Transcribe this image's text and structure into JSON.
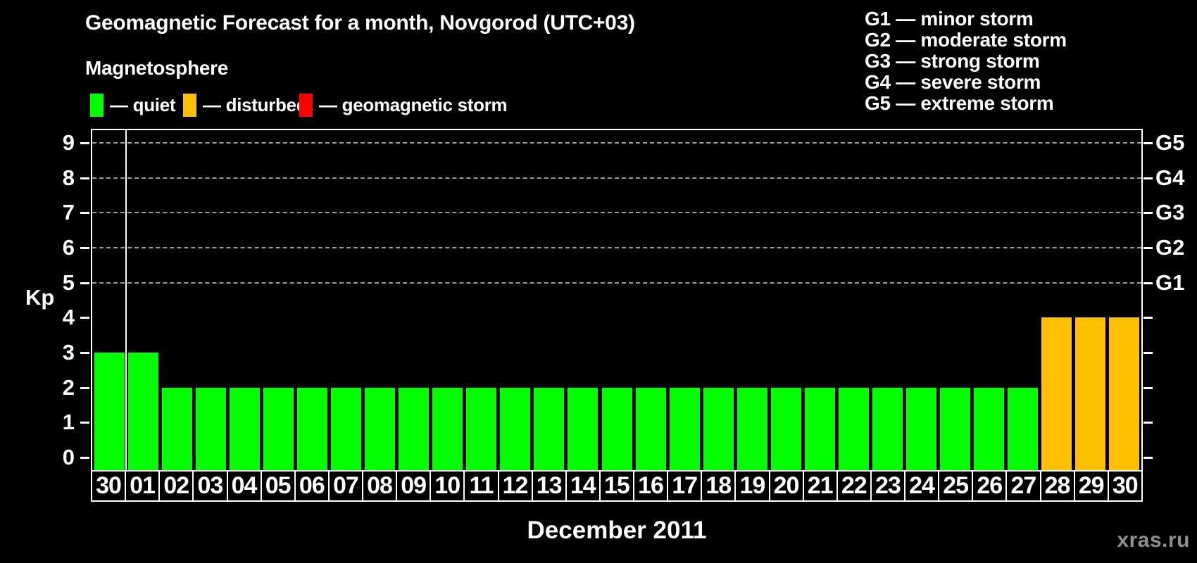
{
  "title": "Geomagnetic Forecast for a month, Novgorod (UTC+03)",
  "watermark": "xras.ru",
  "legend": {
    "heading": "Magnetosphere",
    "items": [
      {
        "label": "— quiet",
        "status": "quiet",
        "color": "#00FF00"
      },
      {
        "label": "— disturbed",
        "status": "disturbed",
        "color": "#FFC000"
      },
      {
        "label": "— geomagnetic storm",
        "status": "storm",
        "color": "#FF0000"
      }
    ]
  },
  "g_scale_legend": [
    "G1 — minor storm",
    "G2 — moderate storm",
    "G3 — strong storm",
    "G4 — severe storm",
    "G5 — extreme storm"
  ],
  "chart_data": {
    "type": "bar",
    "title": "Geomagnetic Forecast for a month, Novgorod (UTC+03)",
    "xlabel": "December 2011",
    "ylabel": "Kp",
    "ylim": [
      0,
      9
    ],
    "yticks": [
      0,
      1,
      2,
      3,
      4,
      5,
      6,
      7,
      8,
      9
    ],
    "gridlines_at_kp": [
      5,
      6,
      7,
      8,
      9
    ],
    "grid": "dashed-horizontal",
    "legend_position": "top-left",
    "right_axis": [
      {
        "kp": 5,
        "label": "G1"
      },
      {
        "kp": 6,
        "label": "G2"
      },
      {
        "kp": 7,
        "label": "G3"
      },
      {
        "kp": 8,
        "label": "G4"
      },
      {
        "kp": 9,
        "label": "G5"
      }
    ],
    "month_separator_after_index": 0,
    "status_colors": {
      "quiet": "#00FF00",
      "disturbed": "#FFC000",
      "storm": "#FF0000"
    },
    "bars": [
      {
        "day": "30",
        "kp": 3,
        "status": "quiet"
      },
      {
        "day": "01",
        "kp": 3,
        "status": "quiet"
      },
      {
        "day": "02",
        "kp": 2,
        "status": "quiet"
      },
      {
        "day": "03",
        "kp": 2,
        "status": "quiet"
      },
      {
        "day": "04",
        "kp": 2,
        "status": "quiet"
      },
      {
        "day": "05",
        "kp": 2,
        "status": "quiet"
      },
      {
        "day": "06",
        "kp": 2,
        "status": "quiet"
      },
      {
        "day": "07",
        "kp": 2,
        "status": "quiet"
      },
      {
        "day": "08",
        "kp": 2,
        "status": "quiet"
      },
      {
        "day": "09",
        "kp": 2,
        "status": "quiet"
      },
      {
        "day": "10",
        "kp": 2,
        "status": "quiet"
      },
      {
        "day": "11",
        "kp": 2,
        "status": "quiet"
      },
      {
        "day": "12",
        "kp": 2,
        "status": "quiet"
      },
      {
        "day": "13",
        "kp": 2,
        "status": "quiet"
      },
      {
        "day": "14",
        "kp": 2,
        "status": "quiet"
      },
      {
        "day": "15",
        "kp": 2,
        "status": "quiet"
      },
      {
        "day": "16",
        "kp": 2,
        "status": "quiet"
      },
      {
        "day": "17",
        "kp": 2,
        "status": "quiet"
      },
      {
        "day": "18",
        "kp": 2,
        "status": "quiet"
      },
      {
        "day": "19",
        "kp": 2,
        "status": "quiet"
      },
      {
        "day": "20",
        "kp": 2,
        "status": "quiet"
      },
      {
        "day": "21",
        "kp": 2,
        "status": "quiet"
      },
      {
        "day": "22",
        "kp": 2,
        "status": "quiet"
      },
      {
        "day": "23",
        "kp": 2,
        "status": "quiet"
      },
      {
        "day": "24",
        "kp": 2,
        "status": "quiet"
      },
      {
        "day": "25",
        "kp": 2,
        "status": "quiet"
      },
      {
        "day": "26",
        "kp": 2,
        "status": "quiet"
      },
      {
        "day": "27",
        "kp": 2,
        "status": "quiet"
      },
      {
        "day": "28",
        "kp": 4,
        "status": "disturbed"
      },
      {
        "day": "29",
        "kp": 4,
        "status": "disturbed"
      },
      {
        "day": "30",
        "kp": 4,
        "status": "disturbed"
      }
    ]
  }
}
